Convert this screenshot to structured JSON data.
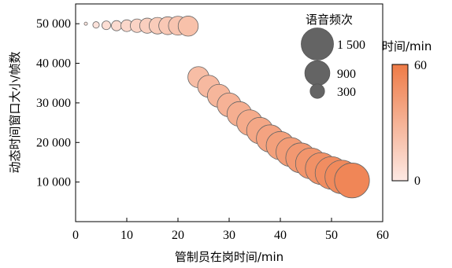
{
  "chart_data": {
    "type": "scatter",
    "xlabel": "管制员在岗时间/min",
    "ylabel": "动态时间窗口大小/帧数",
    "xlim": [
      0,
      60
    ],
    "ylim": [
      0,
      55000
    ],
    "xticks": [
      0,
      10,
      20,
      30,
      40,
      50,
      60
    ],
    "yticks": [
      10000,
      20000,
      30000,
      40000,
      50000
    ],
    "xtick_labels": [
      "0",
      "10",
      "20",
      "30",
      "40",
      "50",
      "60"
    ],
    "ytick_labels": [
      "10 000",
      "20 000",
      "30 000",
      "40 000",
      "50 000"
    ],
    "grid": false,
    "size_legend": {
      "title": "语音频次",
      "entries": [
        {
          "value": 1500,
          "label": "1 500"
        },
        {
          "value": 900,
          "label": "900"
        },
        {
          "value": 300,
          "label": "300"
        }
      ],
      "color": "#646464"
    },
    "colorbar": {
      "title": "时间/min",
      "min": 0,
      "max": 60,
      "min_label": "0",
      "max_label": "60",
      "color_low": "#fde9e4",
      "color_high": "#ee7b47"
    },
    "points": [
      {
        "x": 2,
        "y": 50000,
        "size": 15
      },
      {
        "x": 4,
        "y": 49700,
        "size": 60
      },
      {
        "x": 6,
        "y": 49600,
        "size": 110
      },
      {
        "x": 8,
        "y": 49500,
        "size": 150
      },
      {
        "x": 10,
        "y": 49500,
        "size": 200
      },
      {
        "x": 12,
        "y": 49500,
        "size": 260
      },
      {
        "x": 14,
        "y": 49500,
        "size": 330
      },
      {
        "x": 16,
        "y": 49500,
        "size": 400
      },
      {
        "x": 18,
        "y": 49500,
        "size": 460
      },
      {
        "x": 20,
        "y": 49500,
        "size": 520
      },
      {
        "x": 22,
        "y": 49400,
        "size": 580
      },
      {
        "x": 24,
        "y": 36500,
        "size": 640
      },
      {
        "x": 26,
        "y": 34200,
        "size": 700
      },
      {
        "x": 28,
        "y": 31800,
        "size": 760
      },
      {
        "x": 30,
        "y": 29500,
        "size": 820
      },
      {
        "x": 32,
        "y": 27200,
        "size": 880
      },
      {
        "x": 34,
        "y": 25000,
        "size": 950
      },
      {
        "x": 36,
        "y": 23000,
        "size": 1010
      },
      {
        "x": 38,
        "y": 21000,
        "size": 1080
      },
      {
        "x": 40,
        "y": 19200,
        "size": 1150
      },
      {
        "x": 42,
        "y": 17600,
        "size": 1220
      },
      {
        "x": 44,
        "y": 16100,
        "size": 1300
      },
      {
        "x": 46,
        "y": 14700,
        "size": 1380
      },
      {
        "x": 48,
        "y": 13400,
        "size": 1460
      },
      {
        "x": 50,
        "y": 12300,
        "size": 1540
      },
      {
        "x": 52,
        "y": 11300,
        "size": 1620
      },
      {
        "x": 54,
        "y": 10400,
        "size": 1750
      }
    ]
  }
}
